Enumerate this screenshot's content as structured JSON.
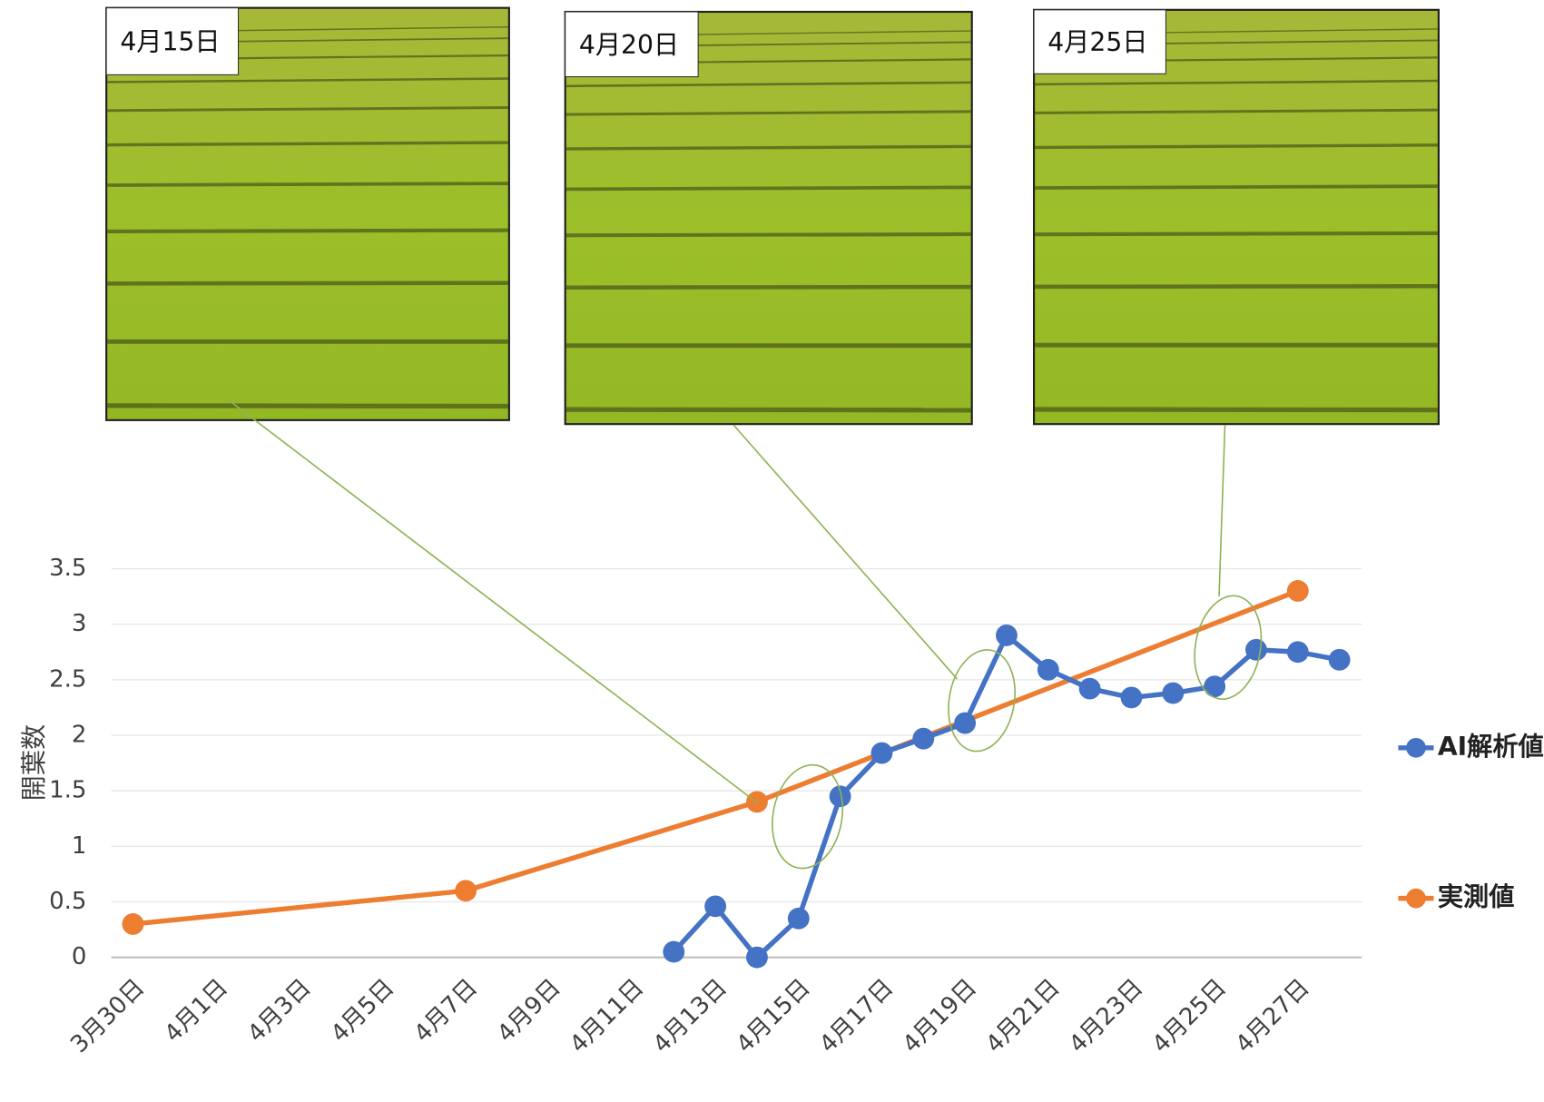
{
  "photos": [
    {
      "label": "4月15日"
    },
    {
      "label": "4月20日"
    },
    {
      "label": "4月25日"
    }
  ],
  "chart_data": {
    "type": "line",
    "y_label": "開葉数",
    "categories": [
      "3月30日",
      null,
      "4月1日",
      null,
      "4月3日",
      null,
      "4月5日",
      null,
      "4月7日",
      null,
      "4月9日",
      null,
      "4月11日",
      null,
      "4月13日",
      null,
      "4月15日",
      null,
      "4月17日",
      null,
      "4月19日",
      null,
      "4月21日",
      null,
      "4月23日",
      null,
      "4月25日",
      null,
      "4月27日",
      null
    ],
    "series": [
      {
        "name": "AI解析値",
        "color": "#4472c4",
        "values": [
          null,
          null,
          null,
          null,
          null,
          null,
          null,
          null,
          null,
          null,
          null,
          null,
          null,
          0.05,
          0.46,
          0,
          0.35,
          1.45,
          1.84,
          1.97,
          2.11,
          2.9,
          2.59,
          2.42,
          2.34,
          2.38,
          2.44,
          2.77,
          2.75,
          2.68
        ]
      },
      {
        "name": "実測値",
        "color": "#ed7d31",
        "connect_gaps": true,
        "values": [
          0.3,
          null,
          null,
          null,
          null,
          null,
          null,
          null,
          0.6,
          null,
          null,
          null,
          null,
          null,
          null,
          1.4,
          null,
          null,
          null,
          null,
          null,
          null,
          null,
          null,
          null,
          null,
          null,
          null,
          3.3,
          null
        ]
      }
    ],
    "ylim": [
      0,
      3.5
    ],
    "yticks": [
      0,
      0.5,
      1,
      1.5,
      2,
      2.5,
      3,
      3.5
    ],
    "grid": true,
    "legend": "right"
  }
}
